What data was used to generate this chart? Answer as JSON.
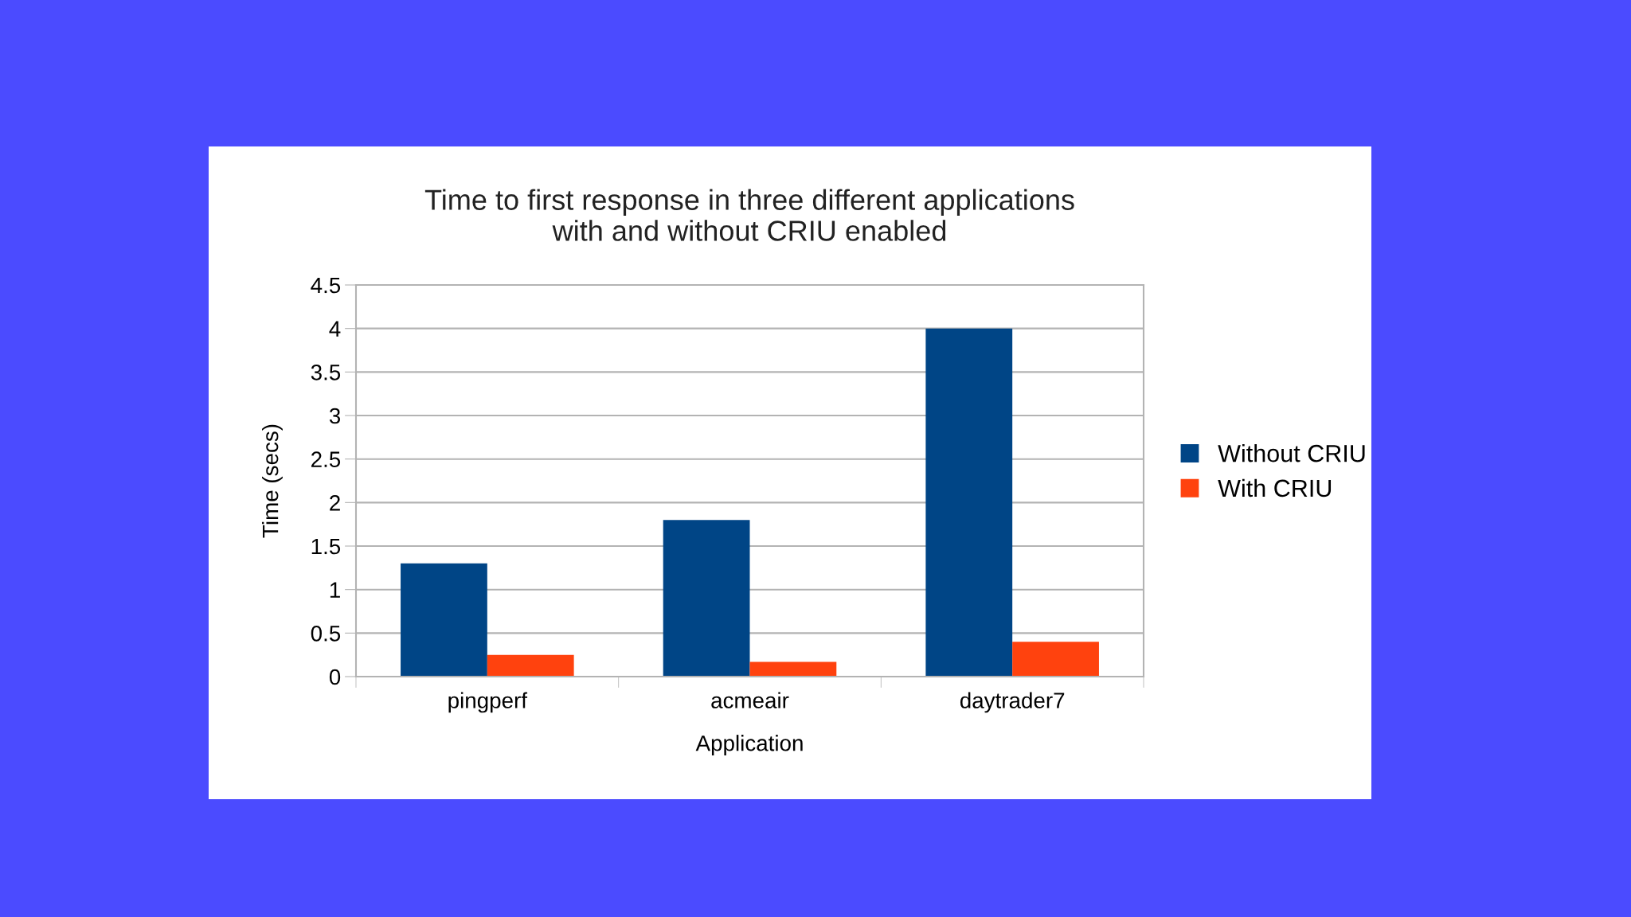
{
  "chart_data": {
    "type": "bar",
    "title": "Time to first response in three different applications\nwith and without CRIU enabled",
    "xlabel": "Application",
    "ylabel": "Time (secs)",
    "categories": [
      "pingperf",
      "acmeair",
      "daytrader7"
    ],
    "series": [
      {
        "name": "Without CRIU",
        "color": "#004586",
        "values": [
          1.3,
          1.8,
          4.0
        ]
      },
      {
        "name": "With CRIU",
        "color": "#ff420e",
        "values": [
          0.25,
          0.17,
          0.4
        ]
      }
    ],
    "ylim": [
      0,
      4.5
    ],
    "yticks": [
      0,
      {
        "value": 0.5,
        "label": "0.5"
      },
      1,
      {
        "value": 1.5,
        "label": "1.5"
      },
      2,
      {
        "value": 2.5,
        "label": "2.5"
      },
      3,
      {
        "value": 3.5,
        "label": "3.5"
      },
      4,
      {
        "value": 4.5,
        "label": "4.5"
      }
    ],
    "grid": "y",
    "legend": "right"
  }
}
